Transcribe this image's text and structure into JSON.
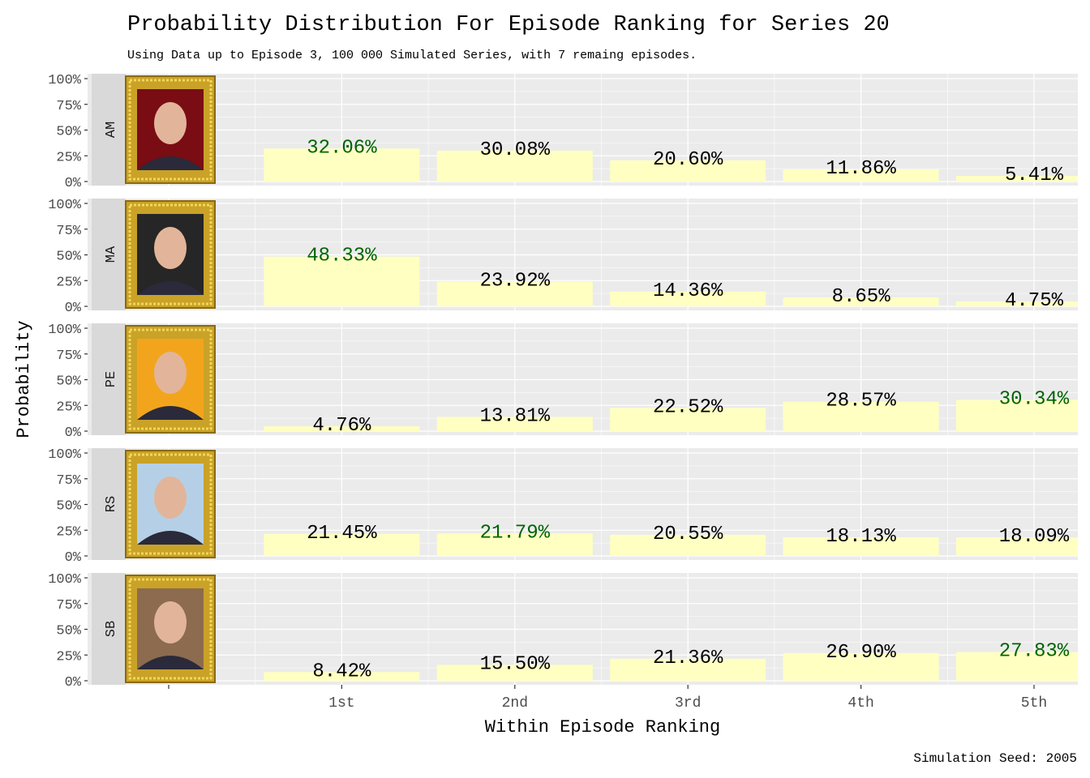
{
  "chart_data": {
    "type": "bar",
    "title": "Probability Distribution For Episode Ranking for Series 20",
    "subtitle": "Using Data up to Episode 3, 100 000 Simulated Series, with 7 remaing episodes.",
    "xlabel": "Within Episode Ranking",
    "ylabel": "Probability",
    "caption": "Simulation Seed: 2005",
    "categories": [
      "1st",
      "2nd",
      "3rd",
      "4th",
      "5th"
    ],
    "yticks": [
      "0%",
      "25%",
      "50%",
      "75%",
      "100%"
    ],
    "ylim": [
      0,
      1
    ],
    "grid": true,
    "bar_color": "#FFFFC2",
    "highlight_color": "#006400",
    "label_color": "#000000",
    "facets": [
      {
        "name": "AM",
        "photo_bg": "#7a0c14",
        "values": [
          32.06,
          30.08,
          20.6,
          11.86,
          5.41
        ],
        "labels": [
          "32.06%",
          "30.08%",
          "20.60%",
          "11.86%",
          "5.41%"
        ]
      },
      {
        "name": "MA",
        "photo_bg": "#262626",
        "values": [
          48.33,
          23.92,
          14.36,
          8.65,
          4.75
        ],
        "labels": [
          "48.33%",
          "23.92%",
          "14.36%",
          "8.65%",
          "4.75%"
        ]
      },
      {
        "name": "PE",
        "photo_bg": "#f2a51c",
        "values": [
          4.76,
          13.81,
          22.52,
          28.57,
          30.34
        ],
        "labels": [
          "4.76%",
          "13.81%",
          "22.52%",
          "28.57%",
          "30.34%"
        ]
      },
      {
        "name": "RS",
        "photo_bg": "#b5d0e6",
        "values": [
          21.45,
          21.79,
          20.55,
          18.13,
          18.09
        ],
        "labels": [
          "21.45%",
          "21.79%",
          "20.55%",
          "18.13%",
          "18.09%"
        ]
      },
      {
        "name": "SB",
        "photo_bg": "#8c6b4f",
        "values": [
          8.42,
          15.5,
          21.36,
          26.9,
          27.83
        ],
        "labels": [
          "8.42%",
          "15.50%",
          "21.36%",
          "26.90%",
          "27.83%"
        ]
      }
    ]
  }
}
